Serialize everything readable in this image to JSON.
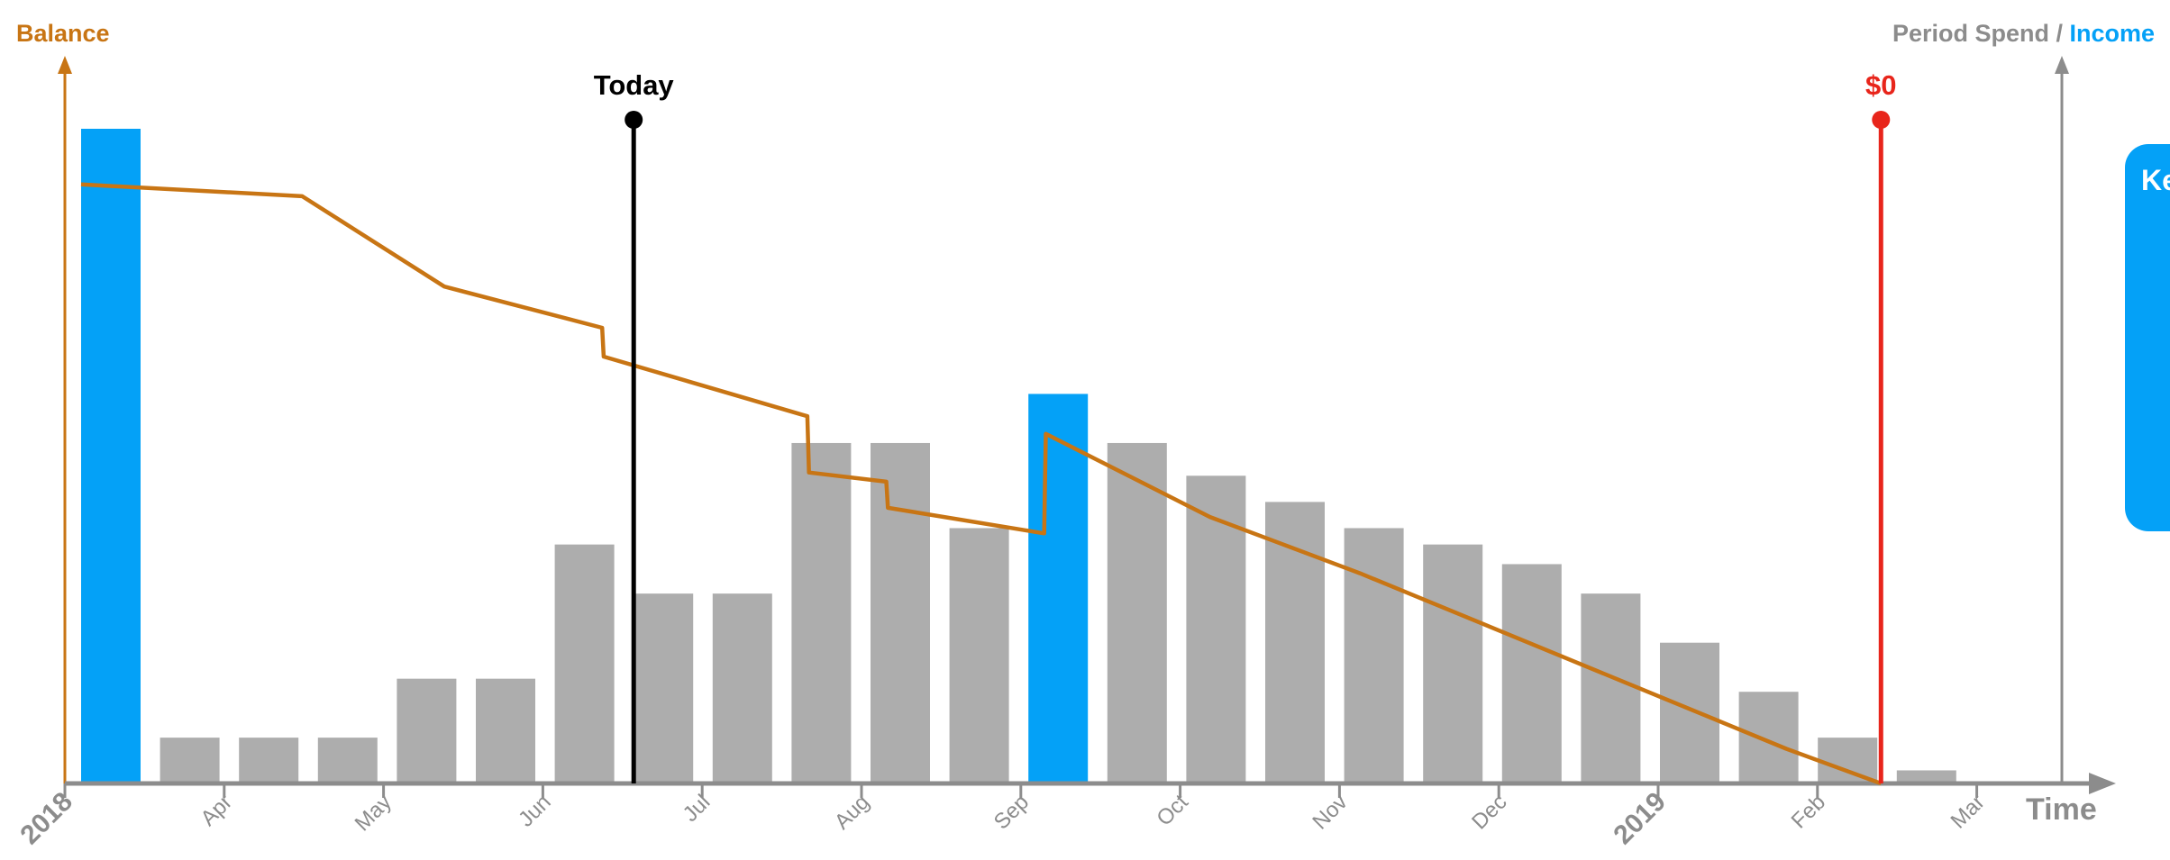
{
  "chart_data": {
    "type": "bar+line",
    "left_axis_label": "Balance",
    "right_axis_label_spend": "Period Spend",
    "right_axis_label_sep": " / ",
    "right_axis_label_income": "Income",
    "x_axis_label": "Time",
    "ticks": [
      "2018",
      "Apr",
      "May",
      "Jun",
      "Jul",
      "Aug",
      "Sep",
      "Oct",
      "Nov",
      "Dec",
      "2019",
      "Feb",
      "Mar"
    ],
    "bold_ticks": [
      "2018",
      "2019"
    ],
    "bars": [
      {
        "kind": "income",
        "value": 100
      },
      {
        "kind": "spend",
        "value": 7
      },
      {
        "kind": "spend",
        "value": 7
      },
      {
        "kind": "spend",
        "value": 7
      },
      {
        "kind": "spend",
        "value": 16
      },
      {
        "kind": "spend",
        "value": 16
      },
      {
        "kind": "spend",
        "value": 36.5
      },
      {
        "kind": "spend",
        "value": 29
      },
      {
        "kind": "spend",
        "value": 29
      },
      {
        "kind": "spend",
        "value": 52
      },
      {
        "kind": "spend",
        "value": 52
      },
      {
        "kind": "spend",
        "value": 39
      },
      {
        "kind": "income",
        "value": 59.5
      },
      {
        "kind": "spend",
        "value": 52
      },
      {
        "kind": "spend",
        "value": 47
      },
      {
        "kind": "spend",
        "value": 43
      },
      {
        "kind": "spend",
        "value": 39
      },
      {
        "kind": "spend",
        "value": 36.5
      },
      {
        "kind": "spend",
        "value": 33.5
      },
      {
        "kind": "spend",
        "value": 29
      },
      {
        "kind": "spend",
        "value": 21.5
      },
      {
        "kind": "spend",
        "value": 14
      },
      {
        "kind": "spend",
        "value": 7
      },
      {
        "kind": "spend",
        "value": 2
      }
    ],
    "balance_line": [
      [
        0,
        91.5
      ],
      [
        2.8,
        89.7
      ],
      [
        4.6,
        75.9
      ],
      [
        6.6,
        69.6
      ],
      [
        6.62,
        65.2
      ],
      [
        9.2,
        56.1
      ],
      [
        9.22,
        47.5
      ],
      [
        10.2,
        46.1
      ],
      [
        10.22,
        42.1
      ],
      [
        12.2,
        38.2
      ],
      [
        12.22,
        53.4
      ],
      [
        14.3,
        40.7
      ],
      [
        16.2,
        32.1
      ],
      [
        21.6,
        5.3
      ],
      [
        22.8,
        0
      ]
    ],
    "markers": [
      {
        "label": "Today",
        "x": 7.0,
        "color": "#000000"
      },
      {
        "label": "$0",
        "x": 22.8,
        "color": "#e8251b"
      }
    ],
    "callout_text": "Ke",
    "colors": {
      "balance": "#c87514",
      "spend": "#adadad",
      "income": "#04a1f7",
      "axis": "#8c8c8c",
      "today": "#000000",
      "zero": "#e8251b"
    }
  }
}
